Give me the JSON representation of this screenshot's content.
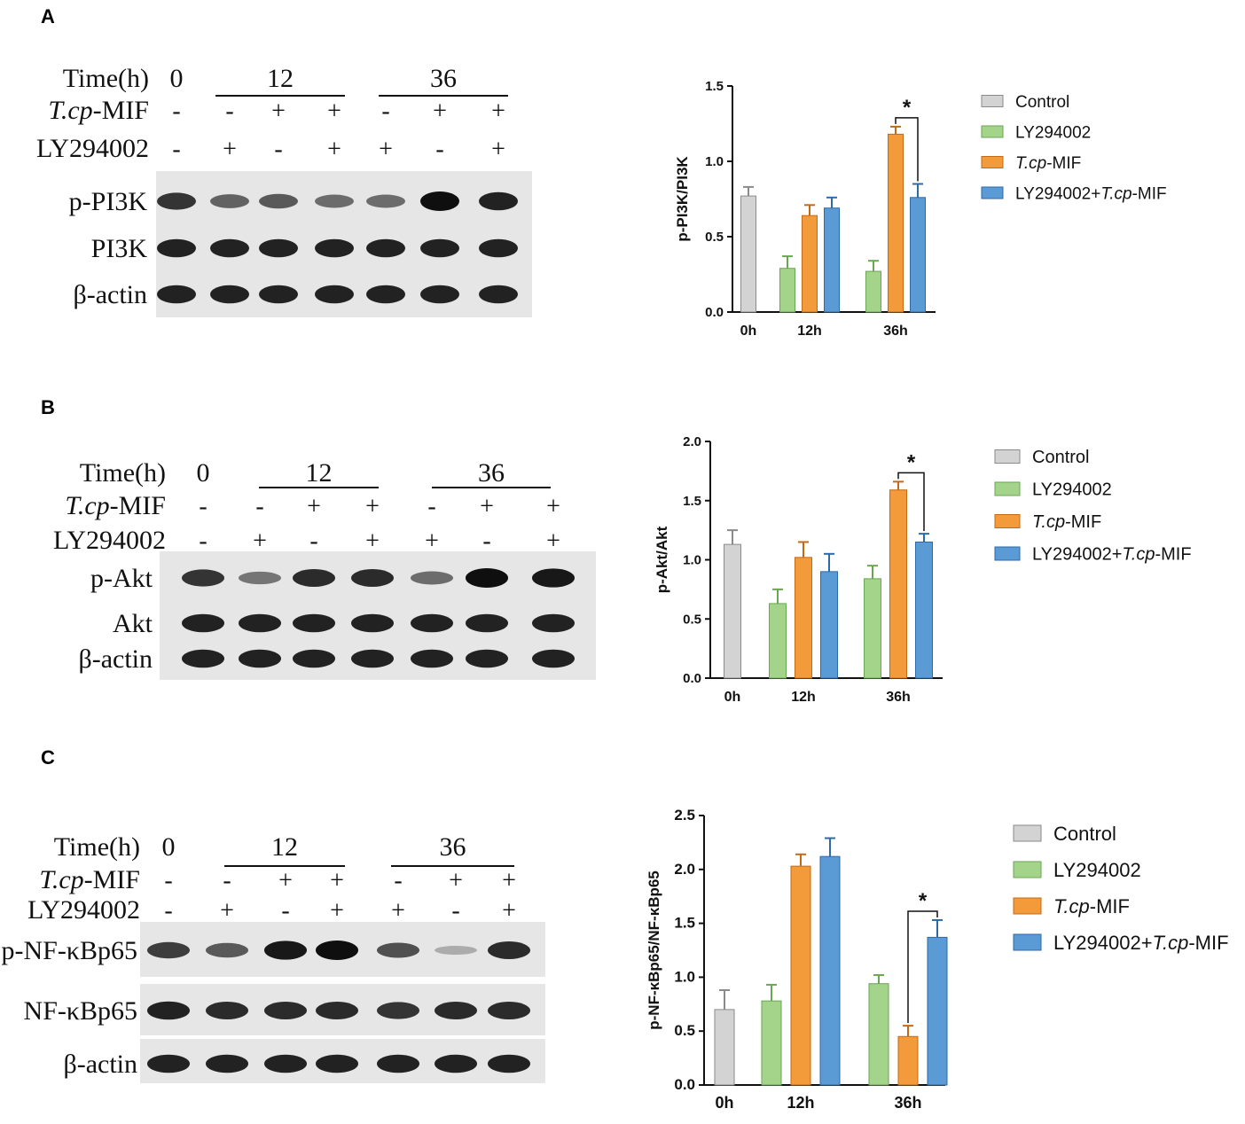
{
  "panels": [
    {
      "letter": "A",
      "blot": {
        "time_label": "Time(h)",
        "time_groups": [
          "0",
          "12",
          "36"
        ],
        "rows": [
          {
            "label_italic": "T.cp",
            "label_rest": "-MIF",
            "signs": [
              "-",
              "-",
              "+",
              "+",
              "-",
              "+",
              "+"
            ]
          },
          {
            "label_italic": "",
            "label_rest": "LY294002",
            "signs": [
              "-",
              "+",
              "-",
              "+",
              "+",
              "-",
              "+"
            ]
          }
        ],
        "bands": [
          {
            "label": "p-PI3K",
            "intensities": [
              0.8,
              0.55,
              0.6,
              0.5,
              0.5,
              1.0,
              0.9
            ]
          },
          {
            "label": "PI3K",
            "intensities": [
              0.9,
              0.9,
              0.9,
              0.9,
              0.9,
              0.9,
              0.9
            ]
          },
          {
            "label": "β-actin",
            "intensities": [
              0.9,
              0.9,
              0.9,
              0.9,
              0.9,
              0.9,
              0.9
            ]
          }
        ]
      }
    },
    {
      "letter": "B",
      "blot": {
        "time_label": "Time(h)",
        "time_groups": [
          "0",
          "12",
          "36"
        ],
        "rows": [
          {
            "label_italic": "T.cp",
            "label_rest": "-MIF",
            "signs": [
              "-",
              "-",
              "+",
              "+",
              "-",
              "+",
              "+"
            ]
          },
          {
            "label_italic": "",
            "label_rest": "LY294002",
            "signs": [
              "-",
              "+",
              "-",
              "+",
              "+",
              "-",
              "+"
            ]
          }
        ],
        "bands": [
          {
            "label": "p-Akt",
            "intensities": [
              0.8,
              0.45,
              0.85,
              0.85,
              0.5,
              1.0,
              0.95
            ]
          },
          {
            "label": "Akt",
            "intensities": [
              0.9,
              0.9,
              0.9,
              0.9,
              0.9,
              0.9,
              0.9
            ]
          },
          {
            "label": "β-actin",
            "intensities": [
              0.9,
              0.9,
              0.9,
              0.9,
              0.9,
              0.9,
              0.9
            ]
          }
        ]
      }
    },
    {
      "letter": "C",
      "blot": {
        "time_label": "Time(h)",
        "time_groups": [
          "0",
          "12",
          "36"
        ],
        "rows": [
          {
            "label_italic": "T.cp",
            "label_rest": "-MIF",
            "signs": [
              "-",
              "-",
              "+",
              "+",
              "-",
              "+",
              "+"
            ]
          },
          {
            "label_italic": "",
            "label_rest": "LY294002",
            "signs": [
              "-",
              "+",
              "-",
              "+",
              "+",
              "-",
              "+"
            ]
          }
        ],
        "bands": [
          {
            "label": "p-NF-κBp65",
            "intensities": [
              0.75,
              0.6,
              0.95,
              1.0,
              0.65,
              0.15,
              0.85
            ]
          },
          {
            "label": "NF-κBp65",
            "intensities": [
              0.9,
              0.85,
              0.85,
              0.85,
              0.8,
              0.85,
              0.85
            ]
          },
          {
            "label": "β-actin",
            "intensities": [
              0.9,
              0.9,
              0.9,
              0.9,
              0.9,
              0.9,
              0.9
            ]
          }
        ]
      }
    }
  ],
  "legend": [
    {
      "italic": "",
      "rest": "Control",
      "color": "#d3d3d3"
    },
    {
      "italic": "",
      "rest": "LY294002",
      "color": "#a3d48a"
    },
    {
      "italic": "T.cp",
      "rest": "-MIF",
      "color": "#f39a3a"
    },
    {
      "prefix": "LY294002+",
      "italic": "T.cp",
      "rest": "-MIF",
      "color": "#5b9bd5"
    }
  ],
  "chart_data": [
    {
      "type": "bar",
      "ylabel": "p-PI3K/PI3K",
      "ylim": [
        0,
        1.5
      ],
      "yticks": [
        "0.0",
        "0.5",
        "1.0",
        "1.5"
      ],
      "categories": [
        "0h",
        "12h",
        "36h"
      ],
      "series": [
        {
          "name": "Control",
          "values": [
            0.77,
            null,
            null
          ],
          "errors": [
            0.06,
            null,
            null
          ]
        },
        {
          "name": "LY294002",
          "values": [
            null,
            0.29,
            0.27
          ],
          "errors": [
            null,
            0.08,
            0.07
          ]
        },
        {
          "name": "T.cp-MIF",
          "values": [
            null,
            0.64,
            1.18
          ],
          "errors": [
            null,
            0.07,
            0.05
          ]
        },
        {
          "name": "LY294002+T.cp-MIF",
          "values": [
            null,
            0.69,
            0.76
          ],
          "errors": [
            null,
            0.07,
            0.09
          ]
        }
      ],
      "annotations": [
        {
          "text": "*",
          "group": "36h",
          "between": [
            "T.cp-MIF",
            "LY294002+T.cp-MIF"
          ]
        }
      ]
    },
    {
      "type": "bar",
      "ylabel": "p-Akt/Akt",
      "ylim": [
        0,
        2.0
      ],
      "yticks": [
        "0.0",
        "0.5",
        "1.0",
        "1.5",
        "2.0"
      ],
      "categories": [
        "0h",
        "12h",
        "36h"
      ],
      "series": [
        {
          "name": "Control",
          "values": [
            1.13,
            null,
            null
          ],
          "errors": [
            0.12,
            null,
            null
          ]
        },
        {
          "name": "LY294002",
          "values": [
            null,
            0.63,
            0.84
          ],
          "errors": [
            null,
            0.12,
            0.11
          ]
        },
        {
          "name": "T.cp-MIF",
          "values": [
            null,
            1.02,
            1.59
          ],
          "errors": [
            null,
            0.13,
            0.07
          ]
        },
        {
          "name": "LY294002+T.cp-MIF",
          "values": [
            null,
            0.9,
            1.15
          ],
          "errors": [
            null,
            0.15,
            0.07
          ]
        }
      ],
      "annotations": [
        {
          "text": "*",
          "group": "36h",
          "between": [
            "T.cp-MIF",
            "LY294002+T.cp-MIF"
          ]
        }
      ]
    },
    {
      "type": "bar",
      "ylabel": "p-NF-κBp65/NF-κBp65",
      "ylim": [
        0,
        2.5
      ],
      "yticks": [
        "0.0",
        "0.5",
        "1.0",
        "1.5",
        "2.0",
        "2.5"
      ],
      "categories": [
        "0h",
        "12h",
        "36h"
      ],
      "series": [
        {
          "name": "Control",
          "values": [
            0.7,
            null,
            null
          ],
          "errors": [
            0.18,
            null,
            null
          ]
        },
        {
          "name": "LY294002",
          "values": [
            null,
            0.78,
            0.94
          ],
          "errors": [
            null,
            0.15,
            0.08
          ]
        },
        {
          "name": "T.cp-MIF",
          "values": [
            null,
            2.03,
            0.45
          ],
          "errors": [
            null,
            0.11,
            0.1
          ]
        },
        {
          "name": "LY294002+T.cp-MIF",
          "values": [
            null,
            2.12,
            1.37
          ],
          "errors": [
            null,
            0.17,
            0.16
          ]
        }
      ],
      "annotations": [
        {
          "text": "*",
          "group": "36h",
          "between": [
            "T.cp-MIF",
            "LY294002+T.cp-MIF"
          ]
        }
      ]
    }
  ]
}
